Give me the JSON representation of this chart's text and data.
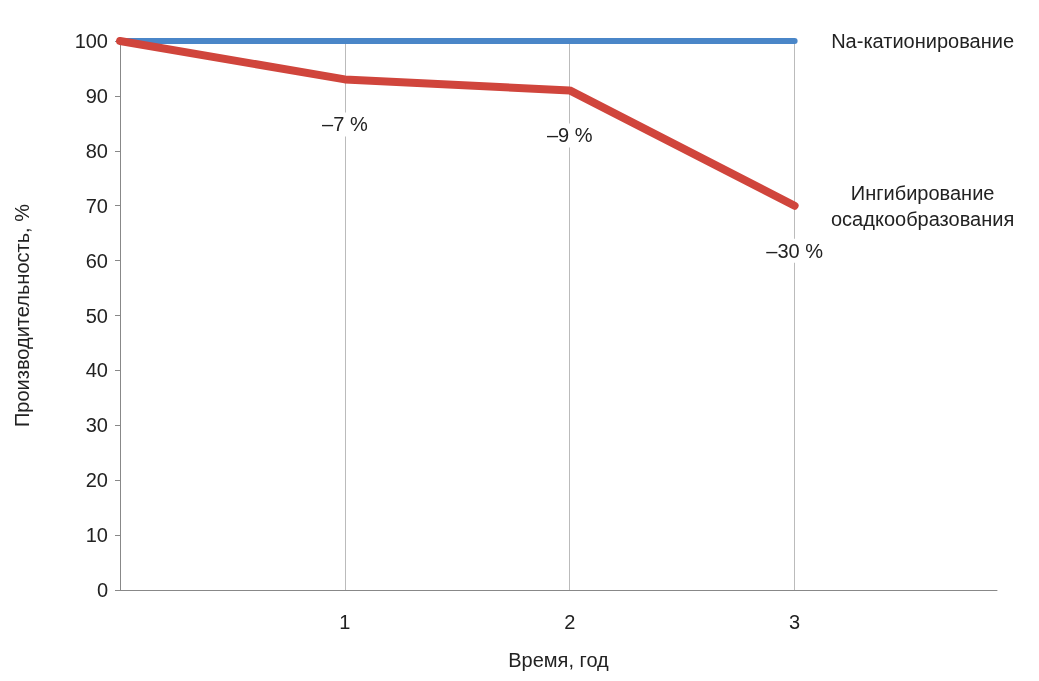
{
  "chart_data": {
    "type": "line",
    "xlabel": "Время, год",
    "ylabel": "Производительность, %",
    "x": [
      0,
      1,
      2,
      3
    ],
    "xlim": [
      0,
      3.9
    ],
    "xticks": [
      1,
      2,
      3
    ],
    "ylim": [
      0,
      100
    ],
    "yticks": [
      0,
      10,
      20,
      30,
      40,
      50,
      60,
      70,
      80,
      90,
      100
    ],
    "grid": "x",
    "legend": false,
    "marker": "none",
    "line_style": "solid",
    "series": [
      {
        "name": "Na-катионирование",
        "color": "#4a86c8",
        "values": [
          100,
          100,
          100,
          100
        ]
      },
      {
        "name": "Ингибирование осадкообразования",
        "color": "#d0453c",
        "values": [
          100,
          93,
          91,
          70
        ]
      }
    ],
    "annotations": [
      {
        "text": "–7 %",
        "x": 1,
        "y": 93
      },
      {
        "text": "–9 %",
        "x": 2,
        "y": 91
      },
      {
        "text": "–30 %",
        "x": 3,
        "y": 70
      }
    ]
  }
}
